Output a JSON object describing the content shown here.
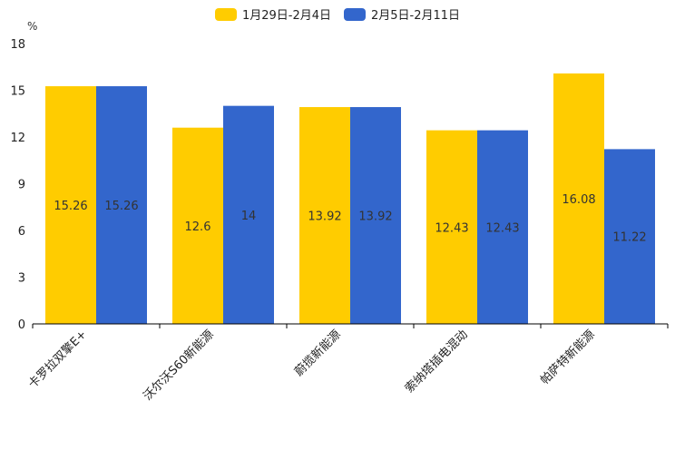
{
  "chart_data": {
    "type": "bar",
    "unit_label": "%",
    "categories": [
      "卡罗拉双擎E+",
      "沃尔沃S60新能源",
      "蔚揽新能源",
      "索纳塔插电混动",
      "帕萨特新能源"
    ],
    "series": [
      {
        "name": "1月29日-2月4日",
        "color": "#FFCC00",
        "values": [
          15.26,
          12.6,
          13.92,
          12.43,
          16.08
        ]
      },
      {
        "name": "2月5日-2月11日",
        "color": "#3366CC",
        "values": [
          15.26,
          14,
          13.92,
          12.43,
          11.22
        ]
      }
    ],
    "data_labels": [
      [
        "15.26",
        "12.6",
        "13.92",
        "12.43",
        "16.08"
      ],
      [
        "15.26",
        "14",
        "13.92",
        "12.43",
        "11.22"
      ]
    ],
    "y_ticks": [
      0,
      3,
      6,
      9,
      12,
      15,
      18
    ],
    "ylim": [
      0,
      18
    ],
    "legend_position": "top-center",
    "grid": false
  }
}
